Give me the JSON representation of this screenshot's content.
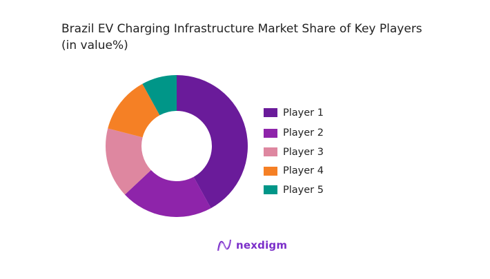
{
  "chart_data": {
    "type": "pie",
    "donut": true,
    "title": "Brazil EV Charging Infrastructure Market Share of Key Players",
    "subtitle": "(in value%)",
    "categories": [
      "Player 1",
      "Player 2",
      "Player 3",
      "Player 4",
      "Player 5"
    ],
    "values": [
      42,
      21,
      16,
      13,
      8
    ],
    "colors": [
      "#6A1B9A",
      "#8E24AA",
      "#DE87A0",
      "#F58025",
      "#009688"
    ],
    "legend_position": "right"
  },
  "branding": {
    "logo_text": "nexdigm",
    "logo_color": "#7B2FC9"
  }
}
